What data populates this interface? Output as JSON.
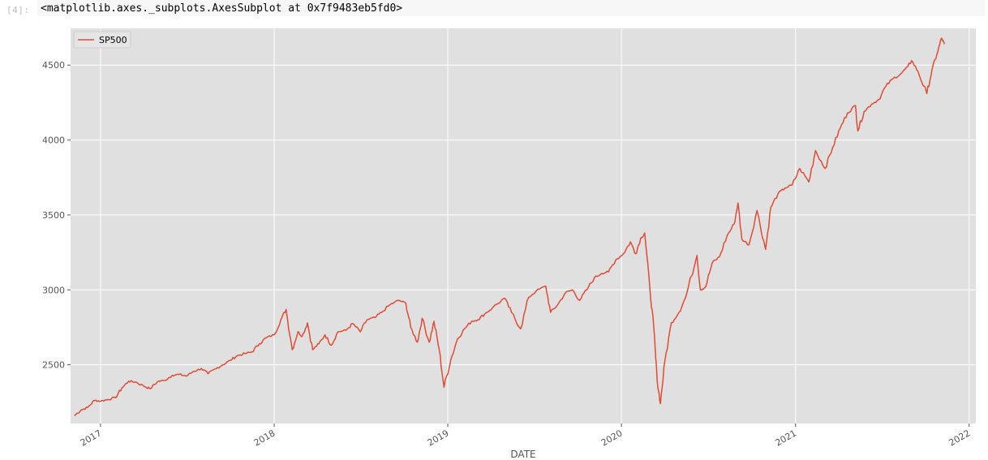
{
  "cell": {
    "prompt": "[4]:",
    "output_repr": "<matplotlib.axes._subplots.AxesSubplot at 0x7f9483eb5fd0>"
  },
  "colors": {
    "plot_background": "#e0e0e0",
    "grid": "#ffffff",
    "line": "#e24a33",
    "tick_text": "#555555"
  },
  "chart_data": {
    "type": "line",
    "title": "",
    "xlabel": "DATE",
    "ylabel": "",
    "x_ticks": [
      "2017",
      "2018",
      "2019",
      "2020",
      "2021",
      "2022"
    ],
    "y_ticks": [
      2500,
      3000,
      3500,
      4000,
      4500
    ],
    "xlim": [
      "2016-10-30",
      "2022-01-15"
    ],
    "ylim": [
      2108,
      4745
    ],
    "grid": true,
    "legend_position": "upper-left",
    "series": [
      {
        "name": "SP500",
        "color": "#e24a33",
        "x": [
          "2016-11-07",
          "2016-11-21",
          "2016-12-05",
          "2016-12-19",
          "2017-01-02",
          "2017-01-16",
          "2017-02-01",
          "2017-02-15",
          "2017-03-01",
          "2017-03-15",
          "2017-04-01",
          "2017-04-15",
          "2017-05-01",
          "2017-05-15",
          "2017-06-01",
          "2017-06-15",
          "2017-07-01",
          "2017-07-15",
          "2017-08-01",
          "2017-08-15",
          "2017-09-01",
          "2017-09-15",
          "2017-10-01",
          "2017-10-15",
          "2017-11-01",
          "2017-11-15",
          "2017-12-01",
          "2017-12-15",
          "2018-01-01",
          "2018-01-15",
          "2018-01-26",
          "2018-02-08",
          "2018-02-20",
          "2018-03-01",
          "2018-03-12",
          "2018-03-23",
          "2018-04-05",
          "2018-04-18",
          "2018-05-01",
          "2018-05-15",
          "2018-06-01",
          "2018-06-15",
          "2018-07-01",
          "2018-07-15",
          "2018-08-01",
          "2018-08-15",
          "2018-09-01",
          "2018-09-20",
          "2018-10-05",
          "2018-10-15",
          "2018-10-29",
          "2018-11-08",
          "2018-11-23",
          "2018-12-03",
          "2018-12-14",
          "2018-12-24",
          "2019-01-07",
          "2019-01-21",
          "2019-02-05",
          "2019-02-20",
          "2019-03-05",
          "2019-03-20",
          "2019-04-05",
          "2019-04-30",
          "2019-05-15",
          "2019-06-03",
          "2019-06-20",
          "2019-07-05",
          "2019-07-26",
          "2019-08-05",
          "2019-08-20",
          "2019-09-05",
          "2019-09-20",
          "2019-10-05",
          "2019-10-20",
          "2019-11-05",
          "2019-11-20",
          "2019-12-05",
          "2019-12-20",
          "2020-01-05",
          "2020-01-20",
          "2020-01-31",
          "2020-02-10",
          "2020-02-19",
          "2020-03-01",
          "2020-03-09",
          "2020-03-16",
          "2020-03-23",
          "2020-04-01",
          "2020-04-15",
          "2020-05-01",
          "2020-05-15",
          "2020-06-08",
          "2020-06-15",
          "2020-06-26",
          "2020-07-10",
          "2020-07-25",
          "2020-08-10",
          "2020-08-25",
          "2020-09-02",
          "2020-09-10",
          "2020-09-25",
          "2020-10-12",
          "2020-10-30",
          "2020-11-10",
          "2020-11-25",
          "2020-12-10",
          "2020-12-25",
          "2021-01-10",
          "2021-01-29",
          "2021-02-12",
          "2021-03-04",
          "2021-03-20",
          "2021-04-05",
          "2021-04-20",
          "2021-05-07",
          "2021-05-12",
          "2021-05-25",
          "2021-06-10",
          "2021-06-25",
          "2021-07-10",
          "2021-07-25",
          "2021-08-10",
          "2021-08-25",
          "2021-09-02",
          "2021-09-15",
          "2021-10-04",
          "2021-10-15",
          "2021-10-25",
          "2021-11-04",
          "2021-11-10"
        ],
        "y": [
          2160,
          2198,
          2215,
          2262,
          2258,
          2268,
          2280,
          2345,
          2390,
          2385,
          2360,
          2340,
          2388,
          2395,
          2430,
          2435,
          2425,
          2455,
          2475,
          2440,
          2475,
          2500,
          2530,
          2560,
          2575,
          2585,
          2640,
          2680,
          2700,
          2800,
          2870,
          2600,
          2720,
          2690,
          2780,
          2600,
          2640,
          2700,
          2630,
          2720,
          2730,
          2775,
          2720,
          2800,
          2815,
          2850,
          2900,
          2930,
          2910,
          2750,
          2650,
          2810,
          2650,
          2790,
          2600,
          2350,
          2530,
          2670,
          2740,
          2790,
          2800,
          2840,
          2880,
          2945,
          2850,
          2740,
          2950,
          2990,
          3025,
          2850,
          2900,
          2980,
          3000,
          2930,
          3000,
          3080,
          3110,
          3120,
          3200,
          3240,
          3320,
          3240,
          3340,
          3380,
          3000,
          2750,
          2400,
          2240,
          2520,
          2780,
          2850,
          2950,
          3230,
          3000,
          3020,
          3180,
          3220,
          3360,
          3440,
          3580,
          3340,
          3300,
          3530,
          3270,
          3550,
          3640,
          3680,
          3700,
          3810,
          3720,
          3930,
          3810,
          3950,
          4080,
          4180,
          4230,
          4060,
          4190,
          4240,
          4270,
          4360,
          4410,
          4440,
          4490,
          4530,
          4460,
          4310,
          4470,
          4570,
          4680,
          4640
        ]
      }
    ]
  }
}
